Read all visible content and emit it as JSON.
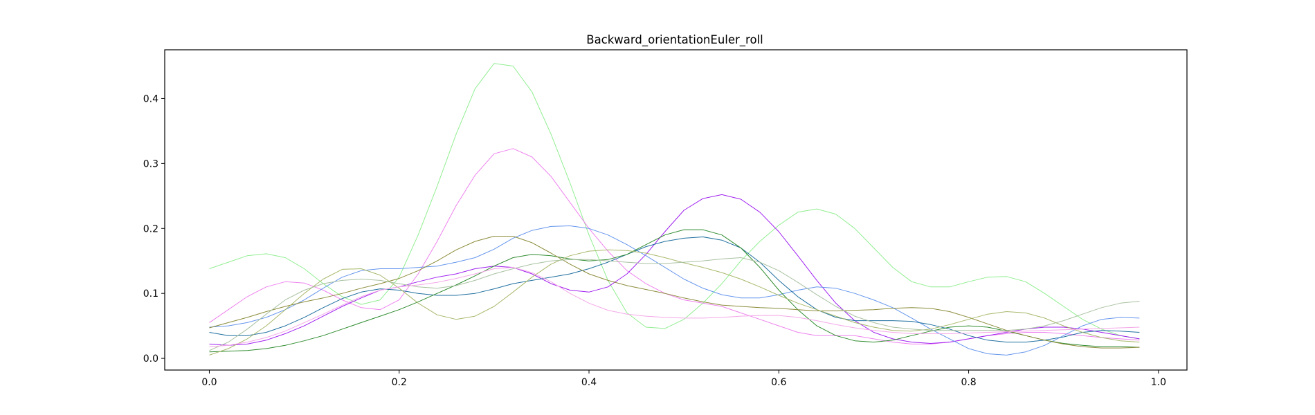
{
  "chart_data": {
    "type": "line",
    "title": "Backward_orientationEuler_roll",
    "xlabel": "",
    "ylabel": "",
    "xlim": [
      -0.047,
      1.03
    ],
    "ylim": [
      -0.018,
      0.475
    ],
    "xticks": [
      0.0,
      0.2,
      0.4,
      0.6,
      0.8,
      1.0
    ],
    "xtick_labels": [
      "0.0",
      "0.2",
      "0.4",
      "0.6",
      "0.8",
      "1.0"
    ],
    "yticks": [
      0.0,
      0.1,
      0.2,
      0.3,
      0.4
    ],
    "ytick_labels": [
      "0.0",
      "0.1",
      "0.2",
      "0.3",
      "0.4"
    ],
    "grid": false,
    "legend": "none",
    "x": [
      0.0,
      0.02,
      0.04,
      0.06,
      0.08,
      0.1,
      0.12,
      0.14,
      0.16,
      0.18,
      0.2,
      0.22,
      0.24,
      0.26,
      0.28,
      0.3,
      0.32,
      0.34,
      0.36,
      0.38,
      0.4,
      0.42,
      0.44,
      0.46,
      0.48,
      0.5,
      0.52,
      0.54,
      0.56,
      0.58,
      0.6,
      0.62,
      0.64,
      0.66,
      0.68,
      0.7,
      0.72,
      0.74,
      0.76,
      0.78,
      0.8,
      0.82,
      0.84,
      0.86,
      0.88,
      0.9,
      0.92,
      0.94,
      0.96,
      0.98
    ],
    "series": [
      {
        "color": "#90ee90",
        "values": [
          0.138,
          0.148,
          0.158,
          0.161,
          0.155,
          0.138,
          0.115,
          0.095,
          0.083,
          0.09,
          0.125,
          0.19,
          0.265,
          0.345,
          0.415,
          0.454,
          0.45,
          0.41,
          0.345,
          0.27,
          0.19,
          0.12,
          0.07,
          0.048,
          0.046,
          0.06,
          0.085,
          0.115,
          0.15,
          0.18,
          0.205,
          0.225,
          0.23,
          0.222,
          0.2,
          0.17,
          0.14,
          0.118,
          0.11,
          0.11,
          0.118,
          0.125,
          0.126,
          0.118,
          0.1,
          0.08,
          0.06,
          0.045,
          0.035,
          0.03
        ]
      },
      {
        "color": "#ee82ee",
        "values": [
          0.055,
          0.075,
          0.095,
          0.11,
          0.118,
          0.116,
          0.105,
          0.09,
          0.078,
          0.075,
          0.09,
          0.13,
          0.18,
          0.235,
          0.282,
          0.315,
          0.323,
          0.31,
          0.28,
          0.24,
          0.2,
          0.165,
          0.135,
          0.115,
          0.1,
          0.09,
          0.085,
          0.08,
          0.07,
          0.06,
          0.05,
          0.04,
          0.035,
          0.035,
          0.035,
          0.03,
          0.025,
          0.022,
          0.022,
          0.025,
          0.03,
          0.035,
          0.038,
          0.04,
          0.04,
          0.038,
          0.035,
          0.032,
          0.03,
          0.028
        ]
      },
      {
        "color": "#a020f0",
        "values": [
          0.022,
          0.02,
          0.022,
          0.028,
          0.038,
          0.05,
          0.065,
          0.08,
          0.093,
          0.105,
          0.11,
          0.118,
          0.125,
          0.13,
          0.138,
          0.142,
          0.14,
          0.13,
          0.115,
          0.105,
          0.102,
          0.11,
          0.13,
          0.16,
          0.195,
          0.228,
          0.246,
          0.252,
          0.245,
          0.225,
          0.195,
          0.158,
          0.12,
          0.085,
          0.058,
          0.04,
          0.03,
          0.025,
          0.023,
          0.025,
          0.03,
          0.035,
          0.04,
          0.045,
          0.048,
          0.048,
          0.045,
          0.04,
          0.035,
          0.03
        ]
      },
      {
        "color": "#6495ed",
        "values": [
          0.048,
          0.05,
          0.055,
          0.063,
          0.075,
          0.09,
          0.108,
          0.125,
          0.135,
          0.138,
          0.138,
          0.14,
          0.142,
          0.148,
          0.155,
          0.168,
          0.185,
          0.197,
          0.203,
          0.204,
          0.2,
          0.19,
          0.175,
          0.158,
          0.14,
          0.122,
          0.108,
          0.098,
          0.093,
          0.093,
          0.098,
          0.105,
          0.11,
          0.108,
          0.1,
          0.09,
          0.078,
          0.062,
          0.045,
          0.03,
          0.015,
          0.007,
          0.005,
          0.01,
          0.02,
          0.035,
          0.05,
          0.06,
          0.063,
          0.062
        ]
      },
      {
        "color": "#1f6f9f",
        "values": [
          0.04,
          0.035,
          0.035,
          0.04,
          0.05,
          0.063,
          0.078,
          0.092,
          0.102,
          0.107,
          0.105,
          0.1,
          0.097,
          0.097,
          0.1,
          0.107,
          0.115,
          0.12,
          0.125,
          0.13,
          0.138,
          0.148,
          0.16,
          0.172,
          0.18,
          0.185,
          0.187,
          0.182,
          0.17,
          0.148,
          0.12,
          0.095,
          0.075,
          0.063,
          0.058,
          0.058,
          0.058,
          0.057,
          0.052,
          0.045,
          0.035,
          0.028,
          0.025,
          0.025,
          0.028,
          0.033,
          0.04,
          0.043,
          0.042,
          0.04
        ]
      },
      {
        "color": "#2e8b2e",
        "values": [
          0.01,
          0.011,
          0.012,
          0.015,
          0.02,
          0.027,
          0.035,
          0.045,
          0.055,
          0.065,
          0.075,
          0.087,
          0.1,
          0.113,
          0.127,
          0.142,
          0.155,
          0.16,
          0.158,
          0.153,
          0.15,
          0.152,
          0.16,
          0.175,
          0.19,
          0.198,
          0.198,
          0.19,
          0.17,
          0.14,
          0.105,
          0.075,
          0.05,
          0.035,
          0.027,
          0.025,
          0.028,
          0.035,
          0.042,
          0.048,
          0.05,
          0.048,
          0.042,
          0.035,
          0.028,
          0.023,
          0.02,
          0.018,
          0.018,
          0.017
        ]
      },
      {
        "color": "#8b8b3a",
        "values": [
          0.047,
          0.055,
          0.063,
          0.072,
          0.08,
          0.087,
          0.093,
          0.1,
          0.108,
          0.115,
          0.123,
          0.135,
          0.15,
          0.167,
          0.18,
          0.188,
          0.188,
          0.178,
          0.162,
          0.145,
          0.13,
          0.12,
          0.112,
          0.106,
          0.1,
          0.093,
          0.087,
          0.082,
          0.08,
          0.078,
          0.077,
          0.075,
          0.073,
          0.073,
          0.074,
          0.075,
          0.077,
          0.078,
          0.077,
          0.072,
          0.063,
          0.053,
          0.043,
          0.035,
          0.028,
          0.022,
          0.018,
          0.016,
          0.016,
          0.017
        ]
      },
      {
        "color": "#a8b86b",
        "values": [
          0.005,
          0.015,
          0.03,
          0.05,
          0.075,
          0.1,
          0.122,
          0.137,
          0.138,
          0.128,
          0.108,
          0.085,
          0.067,
          0.06,
          0.065,
          0.08,
          0.102,
          0.125,
          0.145,
          0.158,
          0.165,
          0.167,
          0.166,
          0.162,
          0.155,
          0.147,
          0.14,
          0.132,
          0.122,
          0.11,
          0.097,
          0.085,
          0.075,
          0.065,
          0.055,
          0.048,
          0.043,
          0.042,
          0.045,
          0.052,
          0.06,
          0.068,
          0.072,
          0.07,
          0.062,
          0.05,
          0.04,
          0.032,
          0.027,
          0.025
        ]
      },
      {
        "color": "#a8c0a0",
        "values": [
          0.012,
          0.025,
          0.045,
          0.068,
          0.09,
          0.105,
          0.115,
          0.12,
          0.122,
          0.12,
          0.115,
          0.11,
          0.108,
          0.112,
          0.12,
          0.13,
          0.138,
          0.145,
          0.15,
          0.152,
          0.152,
          0.15,
          0.148,
          0.146,
          0.146,
          0.148,
          0.15,
          0.153,
          0.155,
          0.148,
          0.135,
          0.117,
          0.098,
          0.08,
          0.065,
          0.055,
          0.048,
          0.045,
          0.043,
          0.043,
          0.043,
          0.043,
          0.043,
          0.045,
          0.05,
          0.058,
          0.068,
          0.078,
          0.085,
          0.088
        ]
      },
      {
        "color": "#f4a7e8",
        "values": [
          0.018,
          0.02,
          0.025,
          0.032,
          0.042,
          0.055,
          0.068,
          0.082,
          0.095,
          0.105,
          0.11,
          0.113,
          0.117,
          0.123,
          0.13,
          0.138,
          0.14,
          0.132,
          0.118,
          0.1,
          0.085,
          0.074,
          0.068,
          0.065,
          0.063,
          0.062,
          0.062,
          0.063,
          0.065,
          0.066,
          0.066,
          0.063,
          0.058,
          0.052,
          0.047,
          0.043,
          0.04,
          0.038,
          0.038,
          0.038,
          0.039,
          0.04,
          0.041,
          0.042,
          0.043,
          0.044,
          0.045,
          0.046,
          0.047,
          0.048
        ]
      }
    ]
  }
}
